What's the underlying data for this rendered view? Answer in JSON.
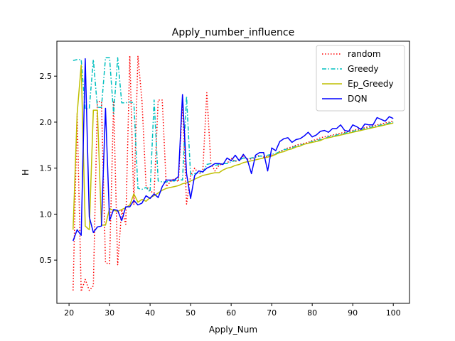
{
  "chart_data": {
    "type": "line",
    "title": "Apply_number_influence",
    "xlabel": "Apply_Num",
    "ylabel": "H",
    "xlim": [
      17,
      104
    ],
    "ylim": [
      0.03,
      2.88
    ],
    "xticks": [
      20,
      30,
      40,
      50,
      60,
      70,
      80,
      90,
      100
    ],
    "yticks": [
      0.5,
      1.0,
      1.5,
      2.0,
      2.5
    ],
    "xtick_labels": [
      "20",
      "30",
      "40",
      "50",
      "60",
      "70",
      "80",
      "90",
      "100"
    ],
    "ytick_labels": [
      "0.5",
      "1.0",
      "1.5",
      "2.0",
      "2.5"
    ],
    "grid": false,
    "legend_position": "top-right",
    "x": [
      21,
      22,
      23,
      24,
      25,
      26,
      27,
      28,
      29,
      30,
      31,
      32,
      33,
      34,
      35,
      36,
      37,
      38,
      39,
      40,
      41,
      42,
      43,
      44,
      45,
      46,
      47,
      48,
      49,
      50,
      51,
      52,
      53,
      54,
      55,
      56,
      57,
      58,
      59,
      60,
      61,
      62,
      63,
      64,
      65,
      66,
      67,
      68,
      69,
      70,
      71,
      72,
      73,
      74,
      75,
      76,
      77,
      78,
      79,
      80,
      81,
      82,
      83,
      84,
      85,
      86,
      87,
      88,
      89,
      90,
      91,
      92,
      93,
      94,
      95,
      96,
      97,
      98,
      99,
      100
    ],
    "series": [
      {
        "name": "random",
        "color": "#ff0000",
        "style": "dotted",
        "values": [
          0.17,
          2.09,
          0.16,
          0.29,
          0.17,
          0.22,
          2.23,
          2.22,
          0.47,
          0.46,
          2.22,
          0.45,
          1.05,
          0.89,
          2.72,
          1.1,
          2.72,
          2.23,
          1.31,
          1.25,
          1.23,
          2.24,
          2.24,
          1.3,
          1.35,
          1.39,
          1.35,
          2.21,
          1.11,
          1.42,
          1.5,
          1.44,
          1.46,
          2.32,
          1.55,
          1.47,
          1.53,
          1.55,
          1.55,
          1.61,
          1.57,
          1.6,
          1.63,
          1.6,
          1.6,
          1.62,
          1.64,
          1.62,
          1.63,
          1.64,
          1.65,
          1.68,
          1.7,
          1.72,
          1.73,
          1.75,
          1.76,
          1.77,
          1.78,
          1.8,
          1.81,
          1.83,
          1.84,
          1.85,
          1.86,
          1.87,
          1.88,
          1.89,
          1.9,
          1.91,
          1.92,
          1.93,
          1.94,
          1.95,
          1.96,
          1.97,
          1.98,
          1.99,
          2.0,
          2.01
        ]
      },
      {
        "name": "Greedy",
        "color": "#00bfbf",
        "style": "dashdot",
        "values": [
          2.67,
          2.68,
          2.68,
          2.14,
          2.15,
          2.68,
          2.16,
          2.16,
          2.7,
          2.7,
          2.09,
          2.7,
          2.21,
          2.21,
          2.22,
          2.21,
          1.28,
          1.27,
          1.29,
          1.24,
          2.24,
          1.36,
          1.35,
          1.35,
          1.36,
          1.36,
          1.38,
          1.37,
          2.28,
          1.42,
          1.44,
          1.45,
          1.45,
          1.54,
          1.55,
          1.53,
          1.54,
          1.55,
          1.55,
          1.57,
          1.58,
          1.59,
          1.61,
          1.6,
          1.61,
          1.62,
          1.63,
          1.63,
          1.64,
          1.65,
          1.66,
          1.68,
          1.7,
          1.71,
          1.72,
          1.74,
          1.75,
          1.76,
          1.77,
          1.79,
          1.8,
          1.81,
          1.82,
          1.84,
          1.85,
          1.86,
          1.87,
          1.88,
          1.89,
          1.9,
          1.91,
          1.92,
          1.93,
          1.94,
          1.95,
          1.96,
          1.97,
          1.98,
          1.99,
          2.0
        ]
      },
      {
        "name": "Ep_Greedy",
        "color": "#bfbf00",
        "style": "solid",
        "values": [
          0.83,
          2.09,
          2.62,
          0.87,
          0.83,
          2.13,
          2.13,
          0.88,
          0.88,
          1.06,
          1.04,
          1.03,
          1.05,
          1.07,
          1.1,
          1.22,
          1.13,
          1.16,
          1.14,
          1.18,
          1.2,
          1.23,
          1.26,
          1.28,
          1.29,
          1.3,
          1.31,
          1.33,
          1.34,
          1.36,
          1.38,
          1.4,
          1.42,
          1.43,
          1.44,
          1.45,
          1.45,
          1.48,
          1.5,
          1.51,
          1.53,
          1.54,
          1.56,
          1.57,
          1.58,
          1.59,
          1.6,
          1.61,
          1.62,
          1.63,
          1.65,
          1.67,
          1.68,
          1.7,
          1.71,
          1.73,
          1.74,
          1.76,
          1.77,
          1.78,
          1.79,
          1.8,
          1.82,
          1.83,
          1.84,
          1.85,
          1.86,
          1.87,
          1.88,
          1.89,
          1.9,
          1.91,
          1.92,
          1.93,
          1.94,
          1.95,
          1.96,
          1.97,
          1.98,
          1.99
        ]
      },
      {
        "name": "DQN",
        "color": "#0000ff",
        "style": "solid",
        "values": [
          0.71,
          0.83,
          0.77,
          2.69,
          0.97,
          0.8,
          0.86,
          0.87,
          2.15,
          0.93,
          1.05,
          1.04,
          0.93,
          1.08,
          1.08,
          1.15,
          1.1,
          1.12,
          1.2,
          1.17,
          1.22,
          1.18,
          1.3,
          1.37,
          1.37,
          1.37,
          1.41,
          2.3,
          1.44,
          1.17,
          1.42,
          1.47,
          1.46,
          1.5,
          1.52,
          1.55,
          1.55,
          1.54,
          1.61,
          1.58,
          1.64,
          1.58,
          1.65,
          1.59,
          1.44,
          1.64,
          1.67,
          1.67,
          1.47,
          1.72,
          1.69,
          1.79,
          1.82,
          1.83,
          1.78,
          1.81,
          1.82,
          1.85,
          1.89,
          1.84,
          1.86,
          1.9,
          1.91,
          1.89,
          1.93,
          1.93,
          1.97,
          1.91,
          1.9,
          1.97,
          1.95,
          1.92,
          1.98,
          1.97,
          1.97,
          2.05,
          2.03,
          2.01,
          2.06,
          2.04
        ]
      }
    ]
  }
}
